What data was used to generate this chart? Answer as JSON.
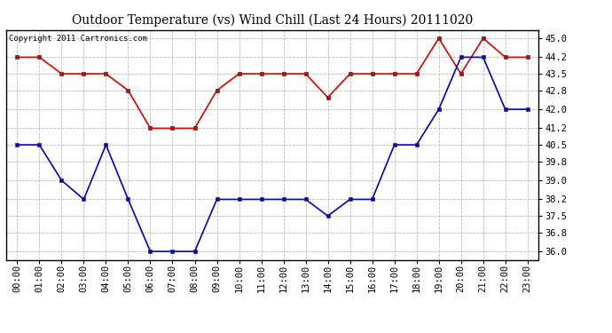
{
  "title": "Outdoor Temperature (vs) Wind Chill (Last 24 Hours) 20111020",
  "copyright": "Copyright 2011 Cartronics.com",
  "x_labels": [
    "00:00",
    "01:00",
    "02:00",
    "03:00",
    "04:00",
    "05:00",
    "06:00",
    "07:00",
    "08:00",
    "09:00",
    "10:00",
    "11:00",
    "12:00",
    "13:00",
    "14:00",
    "15:00",
    "16:00",
    "17:00",
    "18:00",
    "19:00",
    "20:00",
    "21:00",
    "22:00",
    "23:00"
  ],
  "temp_red": [
    44.2,
    44.2,
    43.5,
    43.5,
    43.5,
    42.8,
    41.2,
    41.2,
    41.2,
    42.8,
    43.5,
    43.5,
    43.5,
    43.5,
    42.5,
    43.5,
    43.5,
    43.5,
    43.5,
    45.0,
    43.5,
    45.0,
    44.2,
    44.2
  ],
  "wind_chill_blue": [
    40.5,
    40.5,
    39.0,
    38.2,
    40.5,
    38.2,
    36.0,
    36.0,
    36.0,
    38.2,
    38.2,
    38.2,
    38.2,
    38.2,
    37.5,
    38.2,
    38.2,
    40.5,
    40.5,
    42.0,
    44.2,
    44.2,
    42.0,
    42.0
  ],
  "ylim_min": 35.65,
  "ylim_max": 45.35,
  "yticks": [
    36.0,
    36.8,
    37.5,
    38.2,
    39.0,
    39.8,
    40.5,
    41.2,
    42.0,
    42.8,
    43.5,
    44.2,
    45.0
  ],
  "red_color": "#dd0000",
  "blue_color": "#0000cc",
  "grid_color": "#bbbbbb",
  "bg_color": "#ffffff",
  "title_fontsize": 10,
  "copyright_fontsize": 6.5,
  "tick_fontsize": 7.5
}
